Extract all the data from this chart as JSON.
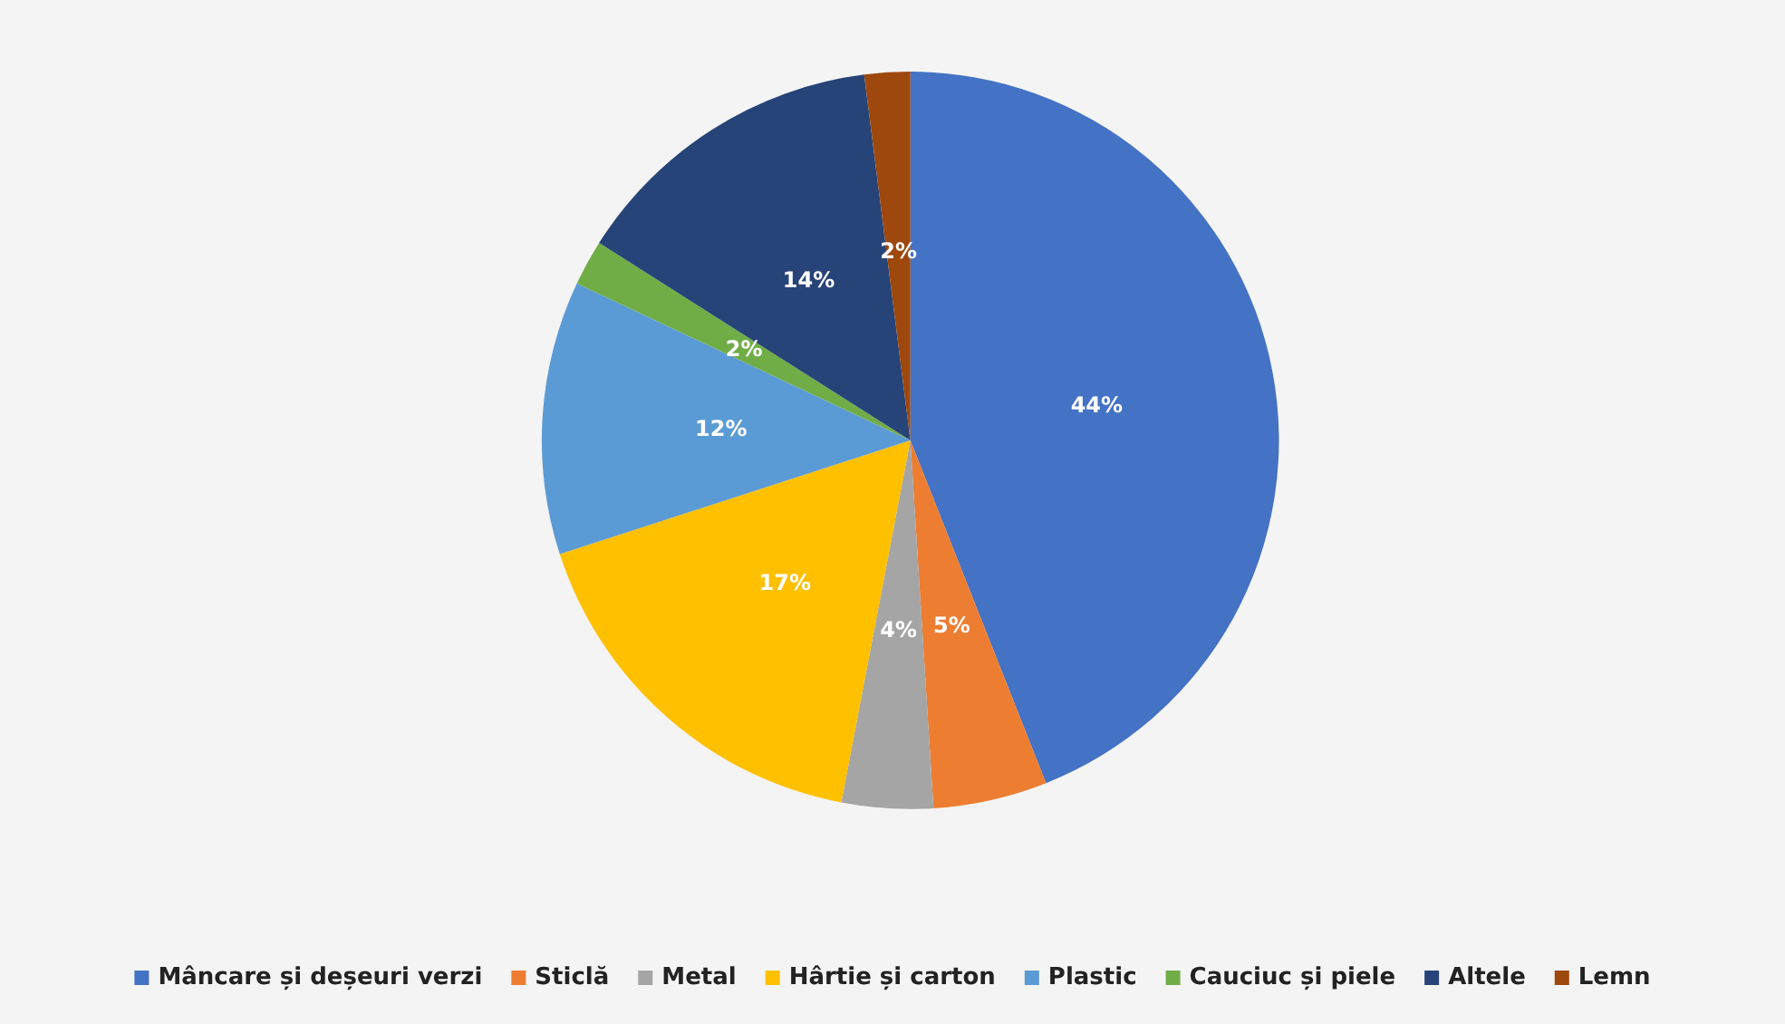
{
  "chart_data": {
    "type": "pie",
    "categories": [
      "Mâncare și deșeuri verzi",
      "Sticlă",
      "Metal",
      "Hârtie și carton",
      "Plastic",
      "Cauciuc și piele",
      "Altele",
      "Lemn"
    ],
    "values": [
      44,
      5,
      4,
      17,
      12,
      2,
      14,
      2
    ],
    "colors": [
      "#4472c4",
      "#ed7d31",
      "#a5a5a5",
      "#ffc000",
      "#5b9bd5",
      "#70ad47",
      "#264478",
      "#9e480e"
    ],
    "value_labels": [
      "44%",
      "5%",
      "4%",
      "17%",
      "12%",
      "2%",
      "14%",
      "2%"
    ],
    "legend": "bottom"
  }
}
